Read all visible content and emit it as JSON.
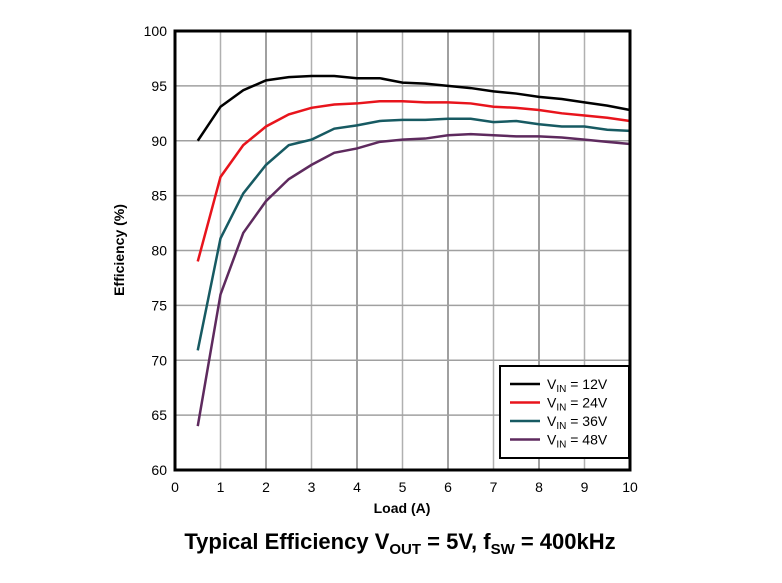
{
  "chart_data": {
    "type": "line",
    "title": "Typical Efficiency V_OUT = 5V, f_SW = 400kHz",
    "title_parts": {
      "a": "Typical Efficiency V",
      "b": "OUT",
      "c": " = 5V, f",
      "d": "SW",
      "e": " = 400kHz"
    },
    "xlabel": "Load (A)",
    "ylabel": "Efficiency (%)",
    "xlim": [
      0,
      10
    ],
    "ylim": [
      60,
      100
    ],
    "xticks": [
      0,
      1,
      2,
      3,
      4,
      5,
      6,
      7,
      8,
      9,
      10
    ],
    "yticks": [
      60,
      65,
      70,
      75,
      80,
      85,
      90,
      95,
      100
    ],
    "grid": true,
    "legend": "bottom-right",
    "x": [
      0.5,
      1,
      1.5,
      2,
      2.5,
      3,
      3.5,
      4,
      4.5,
      5,
      5.5,
      6,
      6.5,
      7,
      7.5,
      8,
      8.5,
      9,
      9.5,
      10
    ],
    "series": [
      {
        "name": "V_IN = 12V",
        "label_main": "V",
        "label_sub": "IN",
        "label_rest": " = 12V",
        "color": "#000000",
        "values": [
          90,
          93.1,
          94.6,
          95.5,
          95.8,
          95.9,
          95.9,
          95.7,
          95.7,
          95.3,
          95.2,
          95.0,
          94.8,
          94.5,
          94.3,
          94.0,
          93.8,
          93.5,
          93.2,
          92.8
        ]
      },
      {
        "name": "V_IN = 24V",
        "label_main": "V",
        "label_sub": "IN",
        "label_rest": " = 24V",
        "color": "#e8141c",
        "values": [
          79,
          86.7,
          89.6,
          91.3,
          92.4,
          93.0,
          93.3,
          93.4,
          93.6,
          93.6,
          93.5,
          93.5,
          93.4,
          93.1,
          93.0,
          92.8,
          92.5,
          92.3,
          92.1,
          91.8
        ]
      },
      {
        "name": "V_IN = 36V",
        "label_main": "V",
        "label_sub": "IN",
        "label_rest": " = 36V",
        "color": "#175a62",
        "values": [
          70.9,
          81.1,
          85.2,
          87.8,
          89.6,
          90.1,
          91.1,
          91.4,
          91.8,
          91.9,
          91.9,
          92.0,
          92.0,
          91.7,
          91.8,
          91.5,
          91.3,
          91.3,
          91.0,
          90.9
        ]
      },
      {
        "name": "V_IN = 48V",
        "label_main": "V",
        "label_sub": "IN",
        "label_rest": " = 48V",
        "color": "#5e2a5e",
        "values": [
          64,
          76,
          81.6,
          84.5,
          86.5,
          87.8,
          88.9,
          89.3,
          89.9,
          90.1,
          90.2,
          90.5,
          90.6,
          90.5,
          90.4,
          90.4,
          90.3,
          90.1,
          89.9,
          89.7
        ]
      }
    ]
  }
}
